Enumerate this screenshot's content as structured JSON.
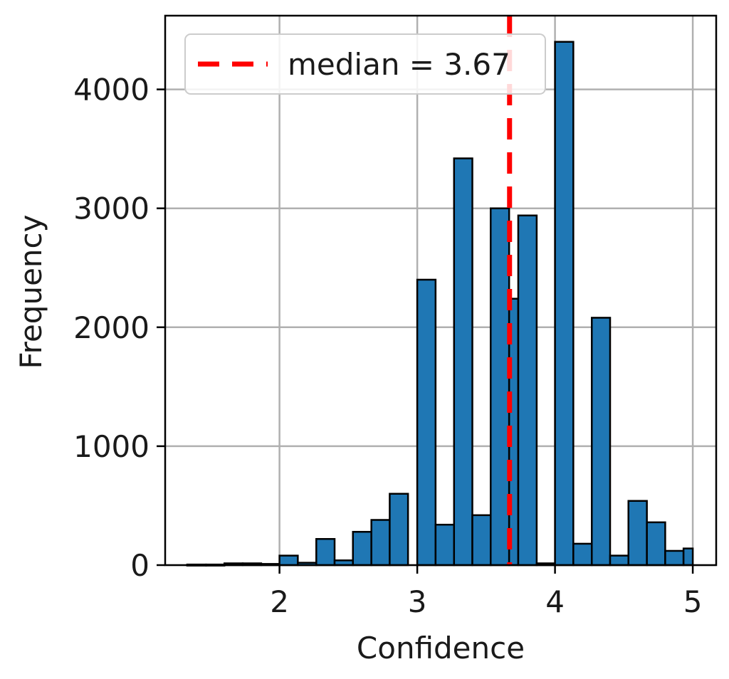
{
  "chart_data": {
    "type": "bar",
    "title": "",
    "xlabel": "Confidence",
    "ylabel": "Frequency",
    "xlim": [
      1.17,
      5.17
    ],
    "ylim": [
      0,
      4620
    ],
    "xticks": [
      2,
      3,
      4,
      5
    ],
    "yticks": [
      0,
      1000,
      2000,
      3000,
      4000
    ],
    "grid": true,
    "legend_placement": "top-left",
    "bar_color": "#1f77b4",
    "bar_edge_color": "#000000",
    "median_line": {
      "x": 3.67,
      "label": "median = 3.67",
      "color": "#ff0000",
      "style": "dashed"
    },
    "bins": [
      {
        "x0": 1.33,
        "x1": 1.467,
        "value": 5
      },
      {
        "x0": 1.467,
        "x1": 1.6,
        "value": 5
      },
      {
        "x0": 1.6,
        "x1": 1.733,
        "value": 15
      },
      {
        "x0": 1.733,
        "x1": 1.867,
        "value": 15
      },
      {
        "x0": 1.867,
        "x1": 2.0,
        "value": 10
      },
      {
        "x0": 2.0,
        "x1": 2.133,
        "value": 80
      },
      {
        "x0": 2.133,
        "x1": 2.267,
        "value": 20
      },
      {
        "x0": 2.267,
        "x1": 2.4,
        "value": 220
      },
      {
        "x0": 2.4,
        "x1": 2.533,
        "value": 40
      },
      {
        "x0": 2.533,
        "x1": 2.667,
        "value": 280
      },
      {
        "x0": 2.667,
        "x1": 2.8,
        "value": 380
      },
      {
        "x0": 2.8,
        "x1": 2.933,
        "value": 600
      },
      {
        "x0": 2.933,
        "x1": 3.0,
        "value": 0
      },
      {
        "x0": 3.0,
        "x1": 3.133,
        "value": 2400
      },
      {
        "x0": 3.133,
        "x1": 3.267,
        "value": 340
      },
      {
        "x0": 3.267,
        "x1": 3.4,
        "value": 3420
      },
      {
        "x0": 3.4,
        "x1": 3.533,
        "value": 420
      },
      {
        "x0": 3.533,
        "x1": 3.667,
        "value": 3000
      },
      {
        "x0": 3.667,
        "x1": 3.733,
        "value": 2240
      },
      {
        "x0": 3.733,
        "x1": 3.867,
        "value": 2940
      },
      {
        "x0": 3.867,
        "x1": 4.0,
        "value": 15
      },
      {
        "x0": 4.0,
        "x1": 4.133,
        "value": 4400
      },
      {
        "x0": 4.133,
        "x1": 4.267,
        "value": 180
      },
      {
        "x0": 4.267,
        "x1": 4.4,
        "value": 2080
      },
      {
        "x0": 4.4,
        "x1": 4.533,
        "value": 80
      },
      {
        "x0": 4.533,
        "x1": 4.667,
        "value": 540
      },
      {
        "x0": 4.667,
        "x1": 4.8,
        "value": 360
      },
      {
        "x0": 4.8,
        "x1": 4.933,
        "value": 120
      },
      {
        "x0": 4.933,
        "x1": 5.0,
        "value": 140
      }
    ]
  }
}
